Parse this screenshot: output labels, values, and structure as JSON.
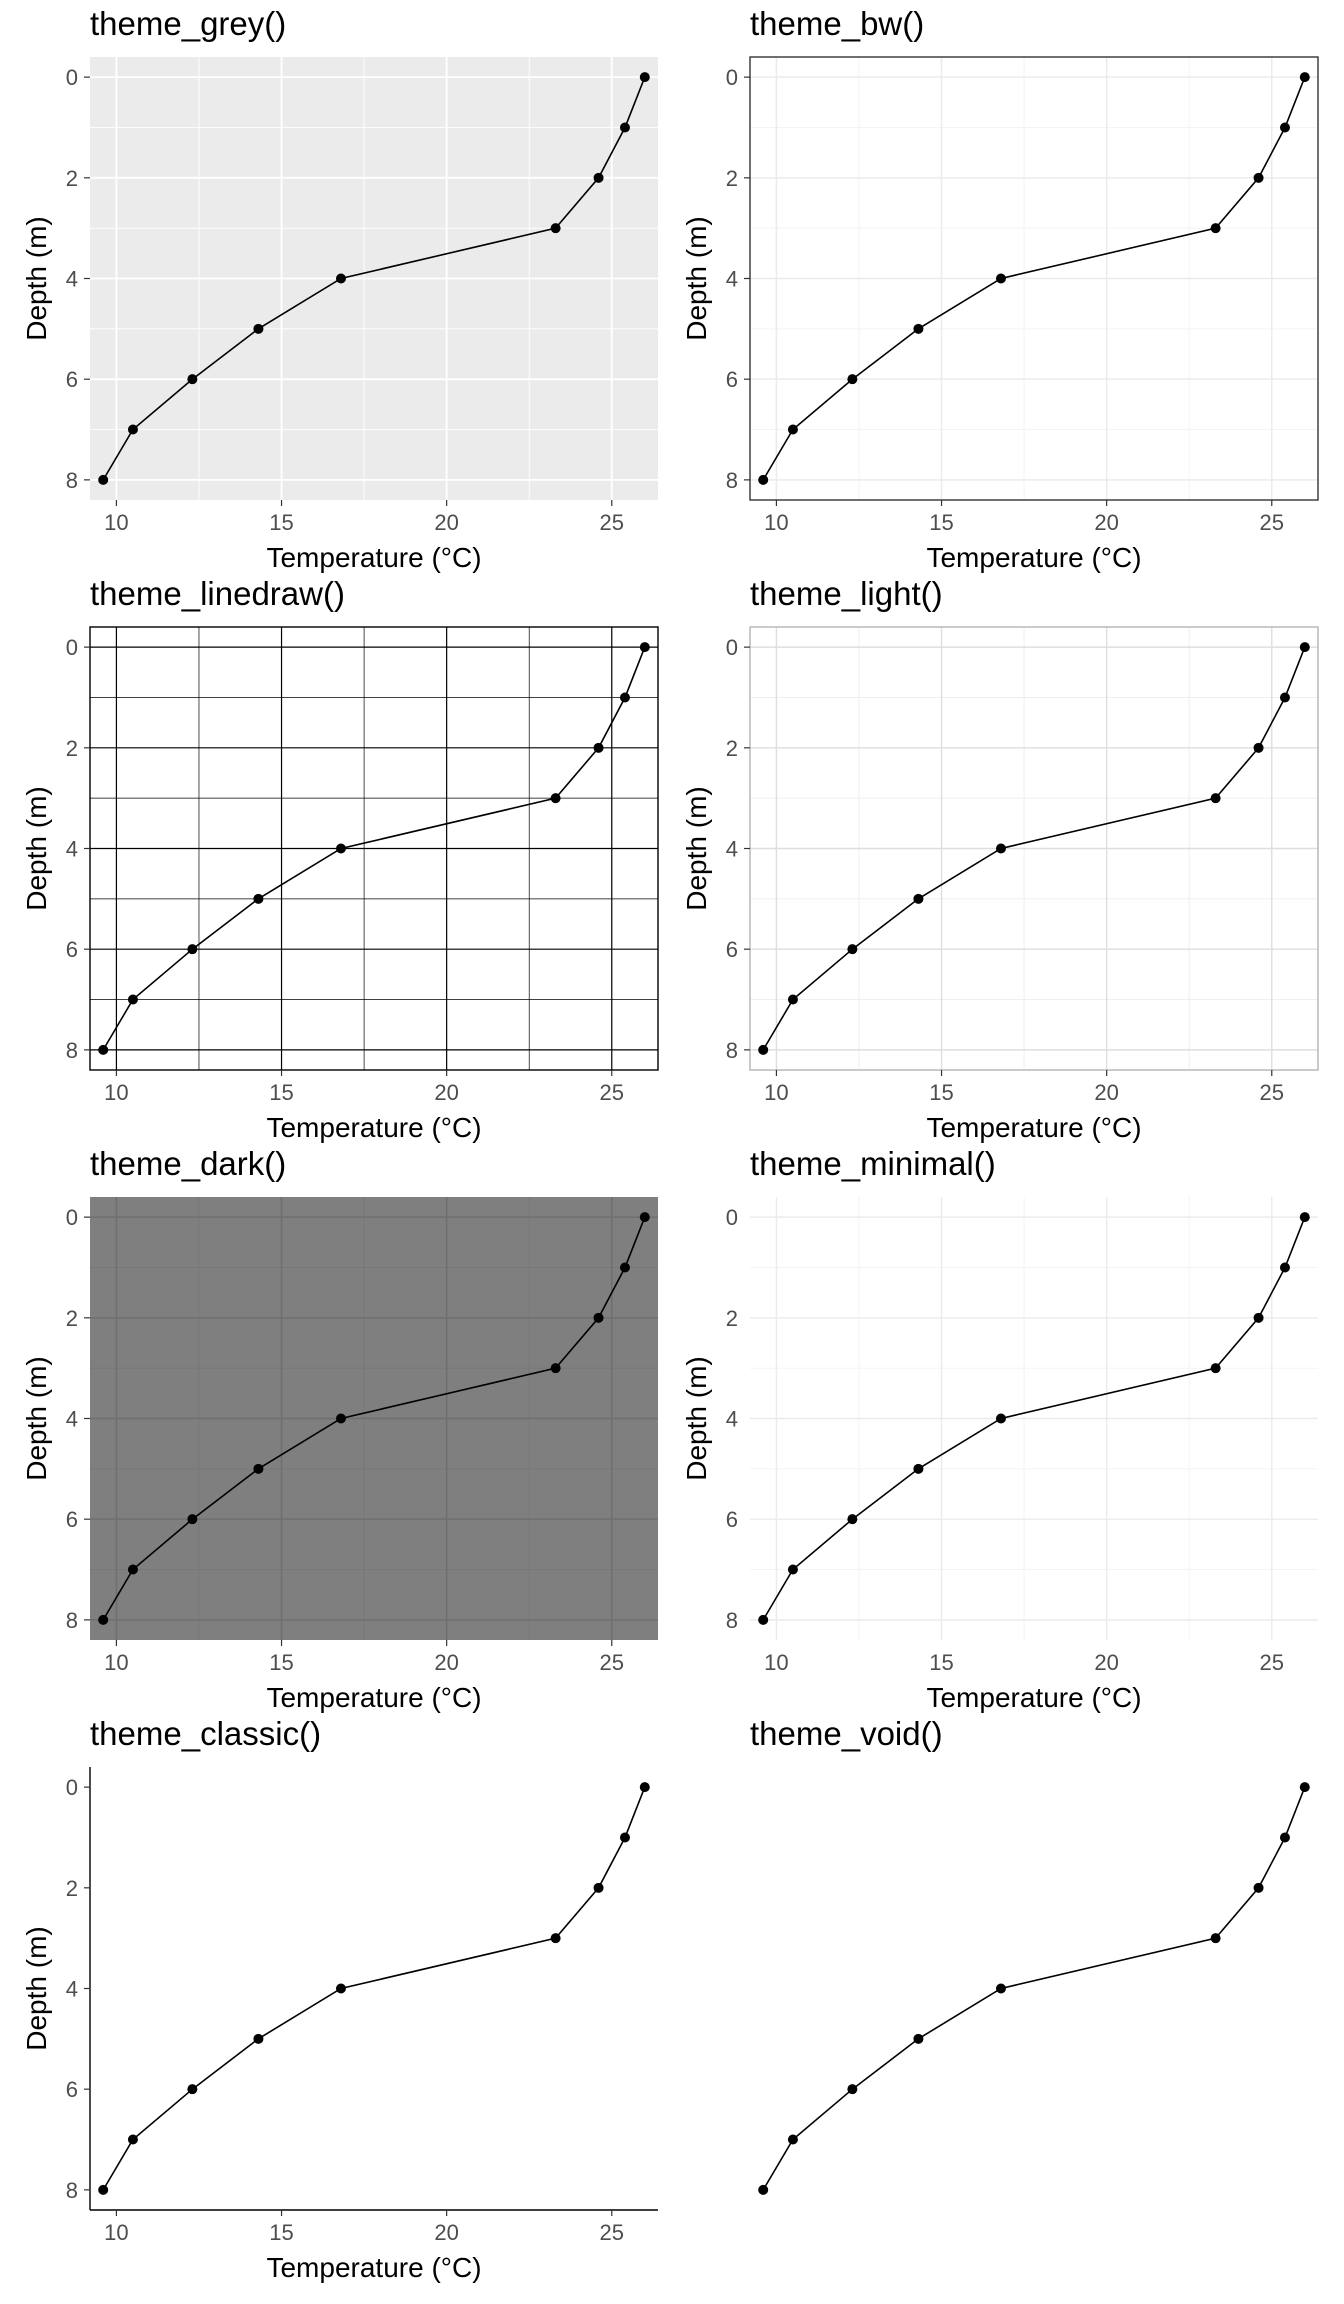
{
  "chart_data": [
    {
      "type": "line",
      "title": "theme_grey()",
      "theme": "grey",
      "xlabel": "Temperature (°C)",
      "ylabel": "Depth (m)",
      "x_ticks": [
        10,
        15,
        20,
        25
      ],
      "y_ticks": [
        0,
        2,
        4,
        6,
        8
      ],
      "xlim": [
        9.2,
        26.4
      ],
      "ylim": [
        8.4,
        -0.4
      ],
      "y_reversed": true,
      "grid": true,
      "series": [
        {
          "x": [
            26.0,
            25.4,
            24.6,
            23.3,
            16.8,
            14.3,
            12.3,
            10.5,
            9.6
          ],
          "y": [
            0,
            1,
            2,
            3,
            4,
            5,
            6,
            7,
            8
          ]
        }
      ]
    },
    {
      "type": "line",
      "title": "theme_bw()",
      "theme": "bw",
      "xlabel": "Temperature (°C)",
      "ylabel": "Depth (m)",
      "x_ticks": [
        10,
        15,
        20,
        25
      ],
      "y_ticks": [
        0,
        2,
        4,
        6,
        8
      ],
      "xlim": [
        9.2,
        26.4
      ],
      "ylim": [
        8.4,
        -0.4
      ],
      "y_reversed": true,
      "grid": true,
      "series": [
        {
          "x": [
            26.0,
            25.4,
            24.6,
            23.3,
            16.8,
            14.3,
            12.3,
            10.5,
            9.6
          ],
          "y": [
            0,
            1,
            2,
            3,
            4,
            5,
            6,
            7,
            8
          ]
        }
      ]
    },
    {
      "type": "line",
      "title": "theme_linedraw()",
      "theme": "linedraw",
      "xlabel": "Temperature (°C)",
      "ylabel": "Depth (m)",
      "x_ticks": [
        10,
        15,
        20,
        25
      ],
      "y_ticks": [
        0,
        2,
        4,
        6,
        8
      ],
      "xlim": [
        9.2,
        26.4
      ],
      "ylim": [
        8.4,
        -0.4
      ],
      "y_reversed": true,
      "grid": true,
      "series": [
        {
          "x": [
            26.0,
            25.4,
            24.6,
            23.3,
            16.8,
            14.3,
            12.3,
            10.5,
            9.6
          ],
          "y": [
            0,
            1,
            2,
            3,
            4,
            5,
            6,
            7,
            8
          ]
        }
      ]
    },
    {
      "type": "line",
      "title": "theme_light()",
      "theme": "light",
      "xlabel": "Temperature (°C)",
      "ylabel": "Depth (m)",
      "x_ticks": [
        10,
        15,
        20,
        25
      ],
      "y_ticks": [
        0,
        2,
        4,
        6,
        8
      ],
      "xlim": [
        9.2,
        26.4
      ],
      "ylim": [
        8.4,
        -0.4
      ],
      "y_reversed": true,
      "grid": true,
      "series": [
        {
          "x": [
            26.0,
            25.4,
            24.6,
            23.3,
            16.8,
            14.3,
            12.3,
            10.5,
            9.6
          ],
          "y": [
            0,
            1,
            2,
            3,
            4,
            5,
            6,
            7,
            8
          ]
        }
      ]
    },
    {
      "type": "line",
      "title": "theme_dark()",
      "theme": "dark",
      "xlabel": "Temperature (°C)",
      "ylabel": "Depth (m)",
      "x_ticks": [
        10,
        15,
        20,
        25
      ],
      "y_ticks": [
        0,
        2,
        4,
        6,
        8
      ],
      "xlim": [
        9.2,
        26.4
      ],
      "ylim": [
        8.4,
        -0.4
      ],
      "y_reversed": true,
      "grid": true,
      "series": [
        {
          "x": [
            26.0,
            25.4,
            24.6,
            23.3,
            16.8,
            14.3,
            12.3,
            10.5,
            9.6
          ],
          "y": [
            0,
            1,
            2,
            3,
            4,
            5,
            6,
            7,
            8
          ]
        }
      ]
    },
    {
      "type": "line",
      "title": "theme_minimal()",
      "theme": "minimal",
      "xlabel": "Temperature (°C)",
      "ylabel": "Depth (m)",
      "x_ticks": [
        10,
        15,
        20,
        25
      ],
      "y_ticks": [
        0,
        2,
        4,
        6,
        8
      ],
      "xlim": [
        9.2,
        26.4
      ],
      "ylim": [
        8.4,
        -0.4
      ],
      "y_reversed": true,
      "grid": true,
      "series": [
        {
          "x": [
            26.0,
            25.4,
            24.6,
            23.3,
            16.8,
            14.3,
            12.3,
            10.5,
            9.6
          ],
          "y": [
            0,
            1,
            2,
            3,
            4,
            5,
            6,
            7,
            8
          ]
        }
      ]
    },
    {
      "type": "line",
      "title": "theme_classic()",
      "theme": "classic",
      "xlabel": "Temperature (°C)",
      "ylabel": "Depth (m)",
      "x_ticks": [
        10,
        15,
        20,
        25
      ],
      "y_ticks": [
        0,
        2,
        4,
        6,
        8
      ],
      "xlim": [
        9.2,
        26.4
      ],
      "ylim": [
        8.4,
        -0.4
      ],
      "y_reversed": true,
      "grid": false,
      "series": [
        {
          "x": [
            26.0,
            25.4,
            24.6,
            23.3,
            16.8,
            14.3,
            12.3,
            10.5,
            9.6
          ],
          "y": [
            0,
            1,
            2,
            3,
            4,
            5,
            6,
            7,
            8
          ]
        }
      ]
    },
    {
      "type": "line",
      "title": "theme_void()",
      "theme": "void",
      "xlabel": "",
      "ylabel": "",
      "x_ticks": [],
      "y_ticks": [],
      "xlim": [
        9.2,
        26.4
      ],
      "ylim": [
        8.4,
        -0.4
      ],
      "y_reversed": true,
      "grid": false,
      "series": [
        {
          "x": [
            26.0,
            25.4,
            24.6,
            23.3,
            16.8,
            14.3,
            12.3,
            10.5,
            9.6
          ],
          "y": [
            0,
            1,
            2,
            3,
            4,
            5,
            6,
            7,
            8
          ]
        }
      ]
    }
  ]
}
